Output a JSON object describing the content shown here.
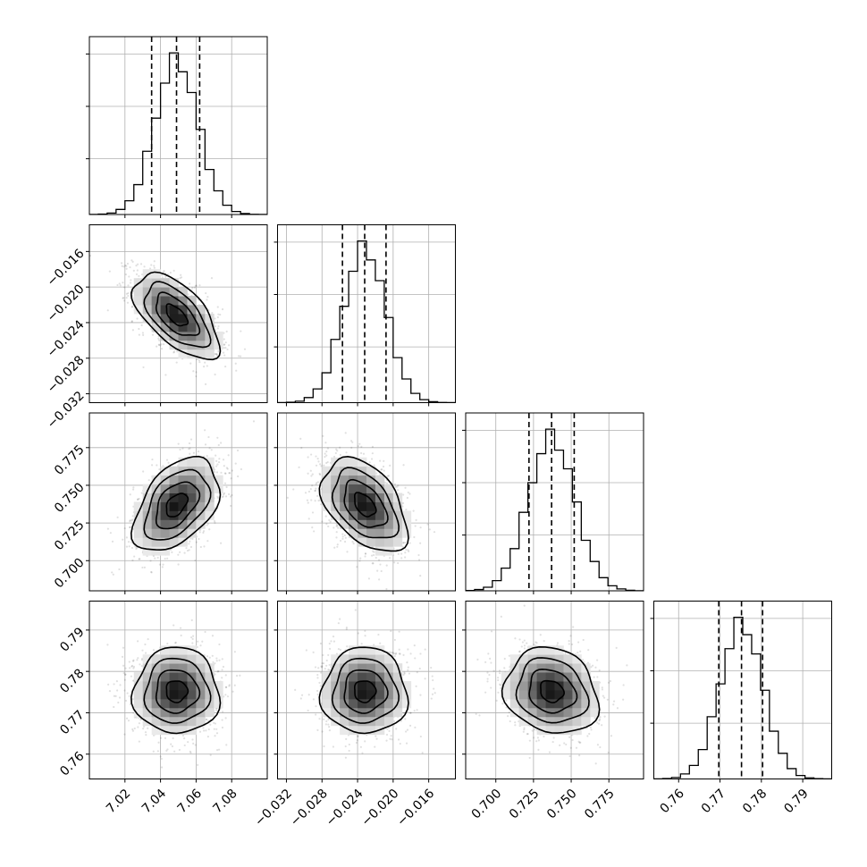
{
  "chart_data": {
    "type": "corner",
    "title": "",
    "grid": true,
    "parameters": [
      {
        "range": [
          7.0,
          7.1
        ],
        "xticks": [
          7.02,
          7.04,
          7.06,
          7.08
        ],
        "xtick_labels": [
          "7.02",
          "7.04",
          "7.06",
          "7.08"
        ],
        "yticks": [],
        "ytick_labels": [],
        "mean": 7.049,
        "std": 0.012,
        "quantiles": [
          7.035,
          7.049,
          7.062
        ]
      },
      {
        "range": [
          -0.033,
          -0.013
        ],
        "xticks": [
          -0.032,
          -0.028,
          -0.024,
          -0.02,
          -0.016
        ],
        "xtick_labels": [
          "−0.032",
          "−0.028",
          "−0.024",
          "−0.020",
          "−0.016"
        ],
        "yticks": [
          -0.032,
          -0.028,
          -0.024,
          -0.02,
          -0.016
        ],
        "ytick_labels": [
          "−0.032",
          "−0.028",
          "−0.024",
          "−0.020",
          "−0.016"
        ],
        "mean": -0.0232,
        "std": 0.0024,
        "quantiles": [
          -0.0257,
          -0.0232,
          -0.0208
        ]
      },
      {
        "range": [
          0.68,
          0.798
        ],
        "xticks": [
          0.7,
          0.725,
          0.75,
          0.775
        ],
        "xtick_labels": [
          "0.700",
          "0.725",
          "0.750",
          "0.775"
        ],
        "yticks": [
          0.7,
          0.725,
          0.75,
          0.775
        ],
        "ytick_labels": [
          "0.700",
          "0.725",
          "0.750",
          "0.775"
        ],
        "mean": 0.737,
        "std": 0.0155,
        "quantiles": [
          0.722,
          0.737,
          0.752
        ]
      },
      {
        "range": [
          0.754,
          0.797
        ],
        "xticks": [
          0.76,
          0.77,
          0.78,
          0.79
        ],
        "xtick_labels": [
          "0.76",
          "0.77",
          "0.78",
          "0.79"
        ],
        "yticks": [
          0.76,
          0.77,
          0.78,
          0.79
        ],
        "ytick_labels": [
          "0.76",
          "0.77",
          "0.78",
          "0.79"
        ],
        "mean": 0.7752,
        "std": 0.0052,
        "quantiles": [
          0.7697,
          0.7752,
          0.7803
        ]
      }
    ],
    "correlations": [
      [
        1.0,
        -0.6,
        0.45,
        0.0
      ],
      [
        -0.6,
        1.0,
        -0.45,
        0.0
      ],
      [
        0.45,
        -0.45,
        1.0,
        -0.15
      ],
      [
        0.0,
        0.0,
        -0.15,
        1.0
      ]
    ],
    "contour_levels_sigma": [
      0.5,
      1.0,
      1.5,
      2.0
    ]
  }
}
